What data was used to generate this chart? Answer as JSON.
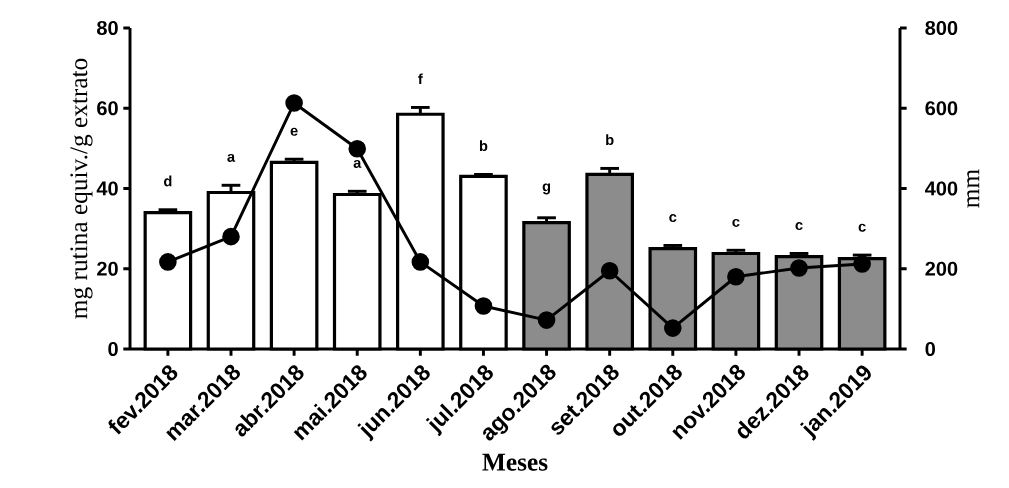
{
  "chart_data": {
    "type": "bar",
    "categories": [
      "fev.2018",
      "mar.2018",
      "abr.2018",
      "mai.2018",
      "jun.2018",
      "jul.2018",
      "ago.2018",
      "set.2018",
      "out.2018",
      "nov.2018",
      "dez.2018",
      "jan.2019"
    ],
    "series": [
      {
        "colors": [
          "#ffffff",
          "#ffffff",
          "#ffffff",
          "#ffffff",
          "#ffffff",
          "#ffffff",
          "#8c8c8c",
          "#8c8c8c",
          "#8c8c8c",
          "#8c8c8c",
          "#8c8c8c",
          "#8c8c8c"
        ],
        "values": [
          34,
          39,
          46.5,
          38.5,
          58.5,
          43,
          31.5,
          43.5,
          25,
          23.8,
          23,
          22.5
        ],
        "errors": [
          0.7,
          1.8,
          0.8,
          0.8,
          1.7,
          0.5,
          1.2,
          1.5,
          0.8,
          0.8,
          0.8,
          0.9
        ]
      },
      {
        "type": "line",
        "axis": "y2",
        "color": "#000000",
        "marker": "circle",
        "line_style": "solid",
        "values": [
          217,
          280,
          613,
          499,
          217,
          107,
          72,
          195,
          52,
          180,
          202,
          212
        ]
      }
    ],
    "xlabel": "Meses",
    "ylabel": "mg rutina equiv./g extrato",
    "y2label": "mm",
    "ylim": [
      0,
      80
    ],
    "yticks": [
      0,
      20,
      40,
      60,
      80
    ],
    "y2lim": [
      0,
      800
    ],
    "y2ticks": [
      0,
      200,
      400,
      600,
      800
    ],
    "grid": false,
    "legend": false,
    "annotations": [
      "d",
      "a",
      "e",
      "a",
      "f",
      "b",
      "g",
      "b",
      "c",
      "c",
      "c",
      "c"
    ]
  }
}
